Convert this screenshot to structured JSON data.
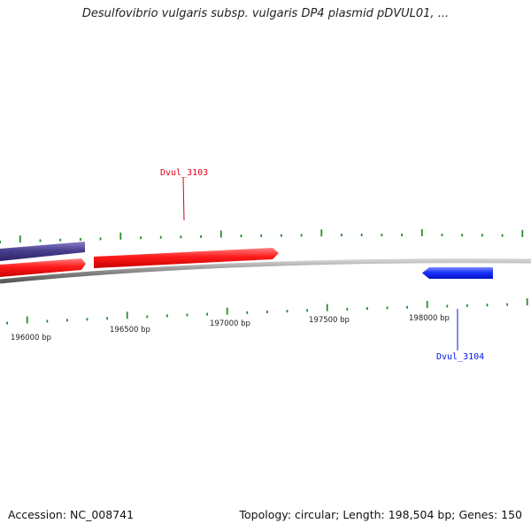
{
  "title": "Desulfovibrio vulgaris subsp. vulgaris DP4 plasmid pDVUL01, ...",
  "footer": {
    "accession": "Accession: NC_008741",
    "summary": "Topology: circular; Length: 198,504 bp; Genes: 150"
  },
  "ruler": {
    "tick_labels": [
      "196000 bp",
      "196500 bp",
      "197000 bp",
      "197500 bp",
      "198000 bp"
    ]
  },
  "genes": [
    {
      "name": "Dvul_3103",
      "strand": "forward",
      "color": "#e0001a"
    },
    {
      "name": "Dvul_3104",
      "strand": "reverse",
      "color": "#0018e0"
    }
  ],
  "colors": {
    "forward_gene": "#ee1111",
    "reverse_gene": "#1133ee",
    "other_gene": "#4a4090",
    "backbone": "#8c8c8c",
    "ticks": "#2a8a2a"
  }
}
